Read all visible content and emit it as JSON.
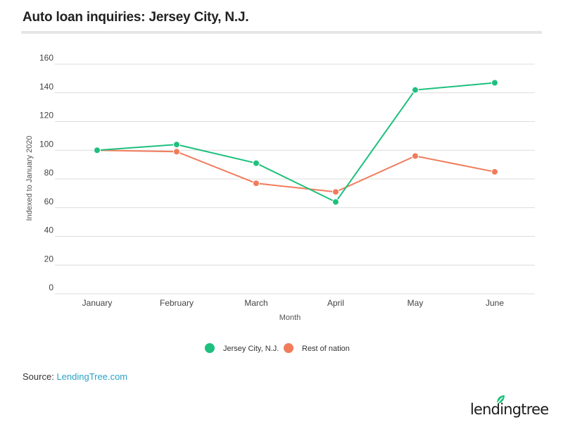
{
  "title": "Auto loan inquiries: Jersey City, N.J.",
  "source": {
    "label": "Source:",
    "link_text": "LendingTree.com"
  },
  "logo": {
    "text": "lendingtree"
  },
  "colors": {
    "jersey": "#1ec07d",
    "nation": "#f07c5c",
    "grid": "#dcdcdc",
    "link": "#2aa3c6"
  },
  "chart_data": {
    "type": "line",
    "title": "Auto loan inquiries: Jersey City, N.J.",
    "xlabel": "Month",
    "ylabel": "Indexed to January 2020",
    "categories": [
      "January",
      "February",
      "March",
      "April",
      "May",
      "June"
    ],
    "yticks": [
      0,
      20,
      40,
      60,
      80,
      100,
      120,
      140,
      160
    ],
    "ylim": [
      0,
      160
    ],
    "grid": true,
    "legend_position": "bottom",
    "series": [
      {
        "name": "Jersey City, N.J.",
        "color": "#1ec07d",
        "values": [
          100,
          104,
          91,
          64,
          142,
          147
        ]
      },
      {
        "name": "Rest of nation",
        "color": "#f07c5c",
        "values": [
          100,
          99,
          77,
          71,
          96,
          85
        ]
      }
    ]
  }
}
